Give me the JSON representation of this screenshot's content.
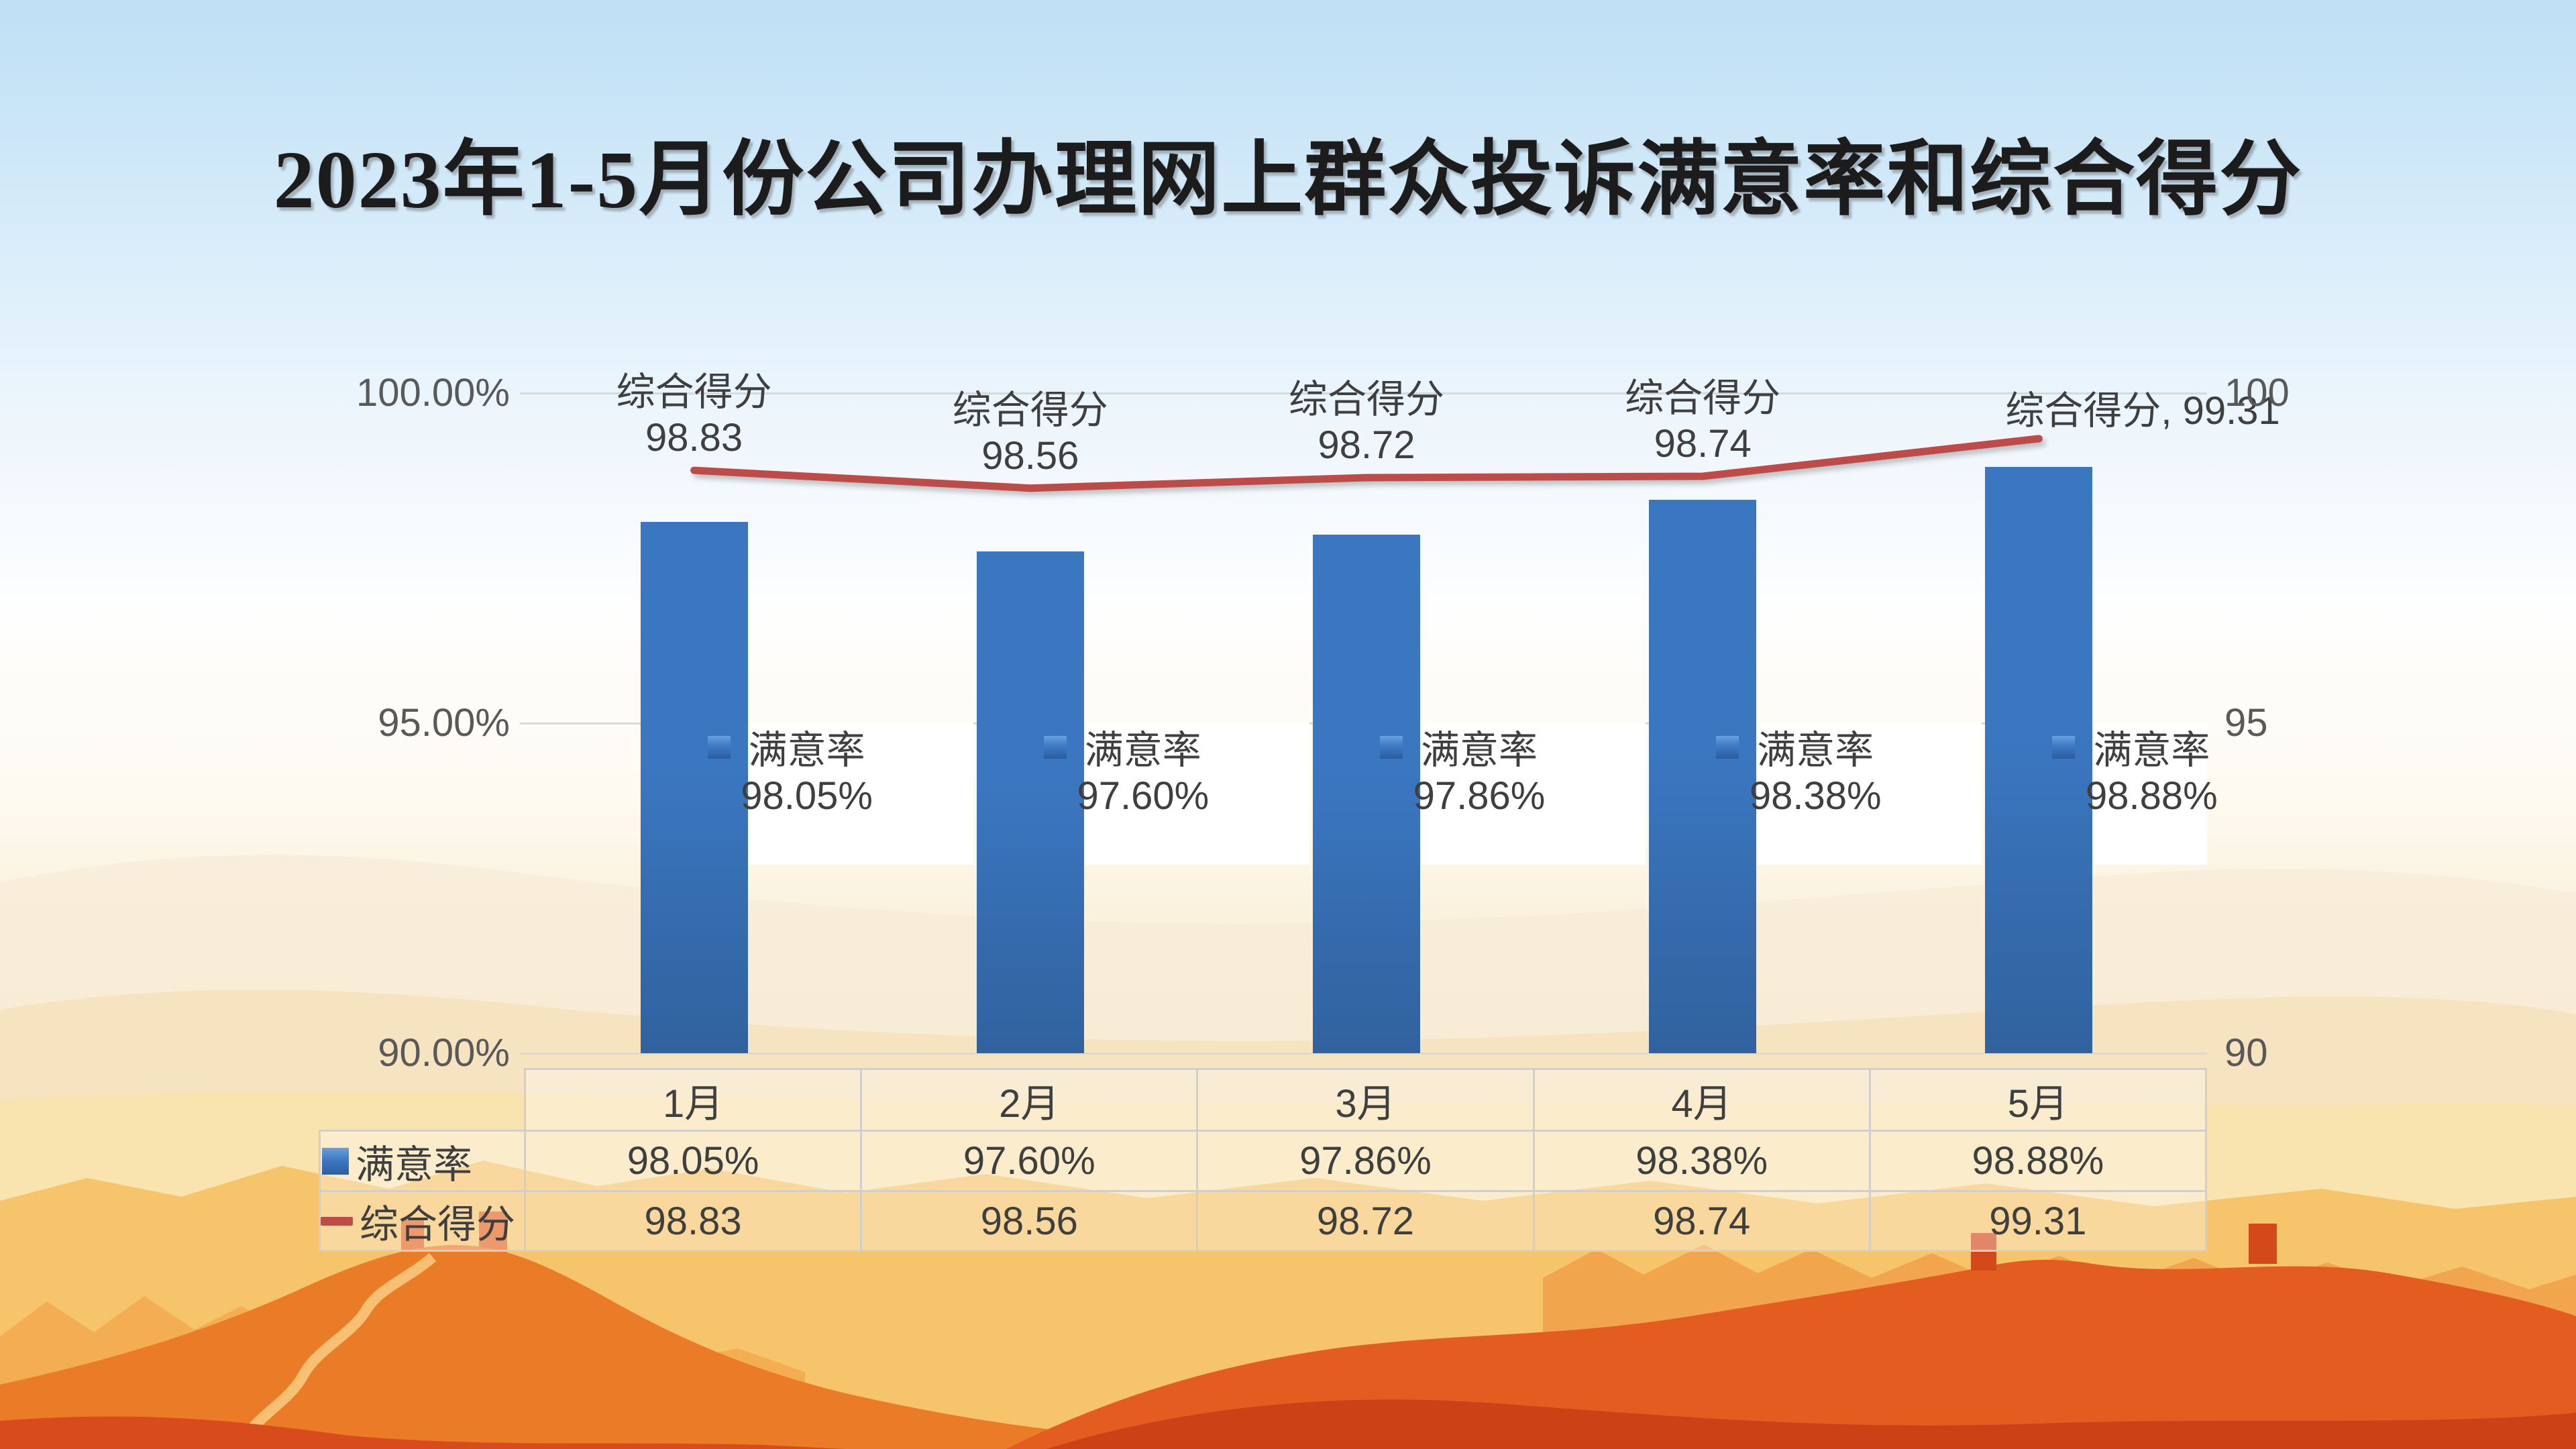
{
  "title": {
    "text": "2023年1-5月份公司办理网上群众投诉满意率和综合得分"
  },
  "chart_data": {
    "type": "combo",
    "subtype": "bar+line",
    "categories": [
      "1月",
      "2月",
      "3月",
      "4月",
      "5月"
    ],
    "series": [
      {
        "name": "满意率",
        "type": "bar",
        "axis": "left",
        "unit": "%",
        "values": [
          98.05,
          97.6,
          97.86,
          98.38,
          98.88
        ],
        "value_labels": [
          "98.05%",
          "97.60%",
          "97.86%",
          "98.38%",
          "98.88%"
        ],
        "point_label_lines": [
          [
            "满意率",
            "98.05%"
          ],
          [
            "满意率",
            "97.60%"
          ],
          [
            "满意率",
            "97.86%"
          ],
          [
            "满意率",
            "98.38%"
          ],
          [
            "满意率",
            "98.88%"
          ]
        ]
      },
      {
        "name": "综合得分",
        "type": "line",
        "axis": "right",
        "values": [
          98.83,
          98.56,
          98.72,
          98.74,
          99.31
        ],
        "value_labels": [
          "98.83",
          "98.56",
          "98.72",
          "98.74",
          "99.31"
        ],
        "point_label_lines": [
          [
            "综合得分",
            "98.83"
          ],
          [
            "综合得分",
            "98.56"
          ],
          [
            "综合得分",
            "98.72"
          ],
          [
            "综合得分",
            "98.74"
          ],
          [
            "综合得分, 99.31"
          ]
        ]
      }
    ],
    "left_axis": {
      "ticks": [
        "100.00%",
        "95.00%",
        "90.00%"
      ],
      "tick_values": [
        100,
        95,
        90
      ],
      "min": 90,
      "max": 100
    },
    "right_axis": {
      "ticks": [
        "100",
        "95",
        "90"
      ],
      "tick_values": [
        100,
        95,
        90
      ],
      "min": 90,
      "max": 100
    },
    "gridlines": true,
    "legend_position": "in-table"
  },
  "data_table": {
    "columns": [
      "1月",
      "2月",
      "3月",
      "4月",
      "5月"
    ],
    "rows": [
      {
        "key_icon": "bar-square",
        "name": "满意率",
        "values": [
          "98.05%",
          "97.60%",
          "97.86%",
          "98.38%",
          "98.88%"
        ]
      },
      {
        "key_icon": "line-dash",
        "name": "综合得分",
        "values": [
          "98.83",
          "98.56",
          "98.72",
          "98.74",
          "99.31"
        ]
      }
    ]
  },
  "colors": {
    "bar": "#3B77C1",
    "bar_dark": "#30629E",
    "line": "#BE4B48",
    "grid": "#D9D9D9",
    "axis_text": "#595959",
    "label_text": "#3F3F3F",
    "table_text": "#3F3F3F",
    "table_border": "#D2CFC9",
    "title_text": "#1C1C1C",
    "label_bg": "#FFFFFF",
    "sky_top": "#BEE0F5",
    "mountain_gold": "#F6C267",
    "mountain_orange": "#EB7C27",
    "mountain_deep": "#D84B1C"
  }
}
